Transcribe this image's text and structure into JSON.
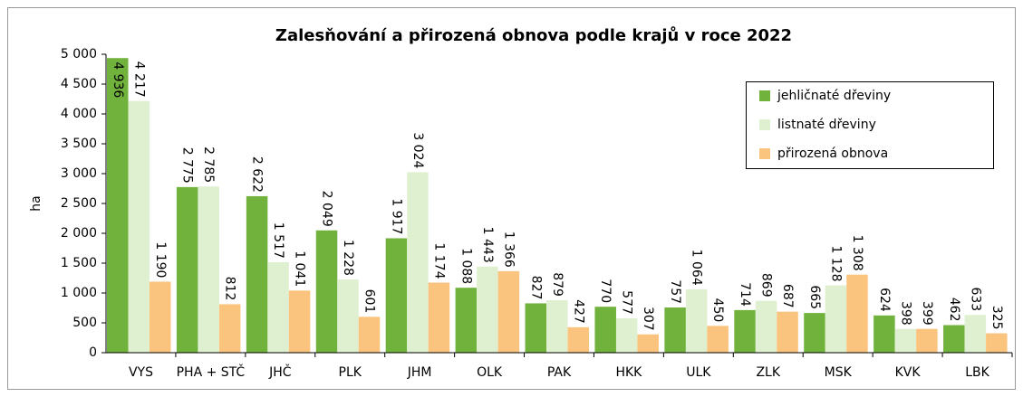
{
  "chart_data": {
    "type": "bar",
    "title": "Zalesňování a přirozená obnova podle krajů v roce 2022",
    "y_label": "ha",
    "categories": [
      "VYS",
      "PHA + STČ",
      "JHČ",
      "PLK",
      "JHM",
      "OLK",
      "PAK",
      "HKK",
      "ULK",
      "ZLK",
      "MSK",
      "KVK",
      "LBK"
    ],
    "series": [
      {
        "name": "jehličnaté dřeviny",
        "color": "#70b23c",
        "values": [
          4936,
          2775,
          2622,
          2049,
          1917,
          1088,
          827,
          770,
          757,
          714,
          665,
          624,
          462
        ],
        "value_labels": [
          "4 936",
          "2 775",
          "2 622",
          "2 049",
          "1 917",
          "1 088",
          "827",
          "770",
          "757",
          "714",
          "665",
          "624",
          "462"
        ]
      },
      {
        "name": "listnaté dřeviny",
        "color": "#dff0d0",
        "values": [
          4217,
          2785,
          1517,
          1228,
          3024,
          1443,
          879,
          577,
          1064,
          869,
          1128,
          398,
          633
        ],
        "value_labels": [
          "4 217",
          "2 785",
          "1 517",
          "1 228",
          "3 024",
          "1 443",
          "879",
          "577",
          "1 064",
          "869",
          "1 128",
          "398",
          "633"
        ]
      },
      {
        "name": "přirozená obnova",
        "color": "#fac47e",
        "values": [
          1190,
          812,
          1041,
          601,
          1174,
          1366,
          427,
          307,
          450,
          687,
          1308,
          399,
          325
        ],
        "value_labels": [
          "1 190",
          "812",
          "1 041",
          "601",
          "1 174",
          "1 366",
          "427",
          "307",
          "450",
          "687",
          "1 308",
          "399",
          "325"
        ]
      }
    ],
    "ylim": [
      0,
      5000
    ],
    "yticks": [
      0,
      500,
      {
        "value": 1000,
        "label": "1 000"
      },
      {
        "value": 1500,
        "label": "1 500"
      },
      {
        "value": 2000,
        "label": "2 000"
      },
      {
        "value": 2500,
        "label": "2 500"
      },
      {
        "value": 3000,
        "label": "3 000"
      },
      {
        "value": 3500,
        "label": "3 500"
      },
      {
        "value": 4000,
        "label": "4 000"
      },
      {
        "value": 4500,
        "label": "4 500"
      },
      {
        "value": 5000,
        "label": "5 000"
      }
    ],
    "grid": false,
    "legend": "upper right"
  }
}
